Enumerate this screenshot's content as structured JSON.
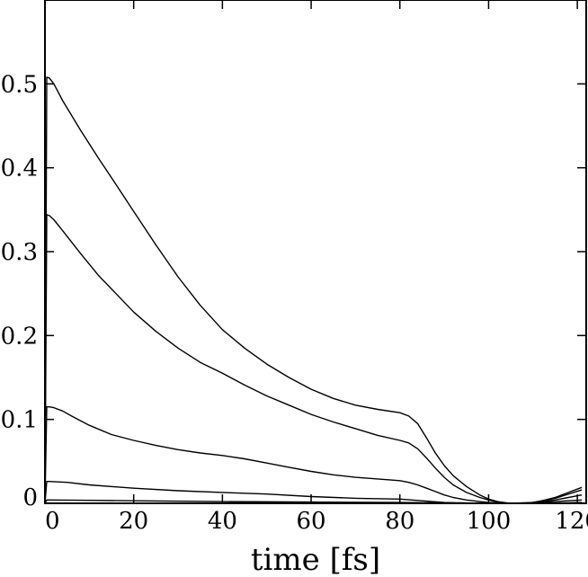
{
  "chart_data": {
    "type": "line",
    "title": "",
    "xlabel": "time [fs]",
    "ylabel": "",
    "xlim": [
      0,
      122
    ],
    "ylim": [
      0,
      0.6
    ],
    "x_ticks": [
      0,
      20,
      40,
      60,
      80,
      100,
      120
    ],
    "x_tick_labels": [
      "0",
      "20",
      "40",
      "60",
      "80",
      "100",
      "120"
    ],
    "y_ticks": [
      0,
      0.1,
      0.2,
      0.3,
      0.4,
      0.5
    ],
    "y_tick_labels": [
      "0",
      "0.1",
      "0.2",
      "0.3",
      "0.4",
      "0.5"
    ],
    "grid": false,
    "legend": "none",
    "series": [
      {
        "x": [
          0,
          0.4,
          1,
          2,
          4,
          8,
          12,
          16,
          20,
          25,
          30,
          35,
          40,
          45,
          50,
          55,
          60,
          65,
          70,
          75,
          80,
          82,
          84,
          86,
          88,
          90,
          92,
          95,
          98,
          100,
          102,
          104,
          105,
          106,
          107,
          108,
          110,
          112,
          115,
          118,
          121
        ],
        "y": [
          0,
          0.508,
          0.507,
          0.5,
          0.48,
          0.445,
          0.412,
          0.38,
          0.348,
          0.308,
          0.27,
          0.236,
          0.207,
          0.185,
          0.166,
          0.15,
          0.136,
          0.125,
          0.117,
          0.112,
          0.108,
          0.104,
          0.095,
          0.078,
          0.06,
          0.045,
          0.033,
          0.02,
          0.01,
          0.005,
          0.002,
          0.0005,
          0,
          0,
          0,
          0,
          0.001,
          0.003,
          0.007,
          0.013,
          0.019
        ]
      },
      {
        "x": [
          0,
          0.4,
          1,
          2,
          4,
          8,
          12,
          16,
          20,
          25,
          30,
          35,
          40,
          45,
          50,
          55,
          60,
          65,
          70,
          75,
          80,
          82,
          84,
          86,
          88,
          90,
          92,
          95,
          98,
          100,
          102,
          104,
          105,
          106,
          107,
          108,
          110,
          112,
          115,
          118,
          121
        ],
        "y": [
          0,
          0.344,
          0.343,
          0.338,
          0.325,
          0.298,
          0.272,
          0.25,
          0.228,
          0.205,
          0.185,
          0.168,
          0.155,
          0.141,
          0.128,
          0.117,
          0.106,
          0.097,
          0.089,
          0.081,
          0.075,
          0.072,
          0.065,
          0.054,
          0.042,
          0.031,
          0.022,
          0.013,
          0.007,
          0.004,
          0.0015,
          0.0003,
          0,
          0,
          0,
          0,
          0.001,
          0.003,
          0.006,
          0.011,
          0.016
        ]
      },
      {
        "x": [
          0,
          0.4,
          1,
          2,
          4,
          6,
          10,
          15,
          20,
          25,
          30,
          35,
          40,
          45,
          50,
          55,
          60,
          65,
          70,
          75,
          80,
          82,
          84,
          86,
          88,
          90,
          92,
          95,
          98,
          100,
          102,
          104,
          105,
          106,
          107,
          108,
          110,
          112,
          115,
          118,
          121
        ],
        "y": [
          0,
          0.115,
          0.115,
          0.114,
          0.11,
          0.104,
          0.093,
          0.082,
          0.075,
          0.069,
          0.064,
          0.06,
          0.057,
          0.053,
          0.048,
          0.043,
          0.038,
          0.034,
          0.031,
          0.029,
          0.027,
          0.025,
          0.022,
          0.018,
          0.014,
          0.01,
          0.007,
          0.004,
          0.002,
          0.001,
          0.0005,
          0,
          0,
          0,
          0,
          0,
          0.001,
          0.002,
          0.004,
          0.007,
          0.01
        ]
      },
      {
        "x": [
          0,
          0.4,
          1,
          5,
          10,
          20,
          30,
          40,
          50,
          60,
          70,
          80,
          85,
          90,
          95,
          100,
          105,
          110,
          115,
          121
        ],
        "y": [
          0,
          0.026,
          0.026,
          0.025,
          0.022,
          0.018,
          0.015,
          0.013,
          0.011,
          0.008,
          0.006,
          0.005,
          0.003,
          0.001,
          0.0004,
          0,
          0,
          0.001,
          0.002,
          0.004
        ]
      },
      {
        "x": [
          0,
          0.4,
          1,
          10,
          20,
          40,
          60,
          80,
          90,
          100,
          110,
          121
        ],
        "y": [
          0,
          0.004,
          0.004,
          0.0035,
          0.003,
          0.002,
          0.0015,
          0.001,
          0.0005,
          0,
          0,
          0.001
        ]
      }
    ]
  }
}
